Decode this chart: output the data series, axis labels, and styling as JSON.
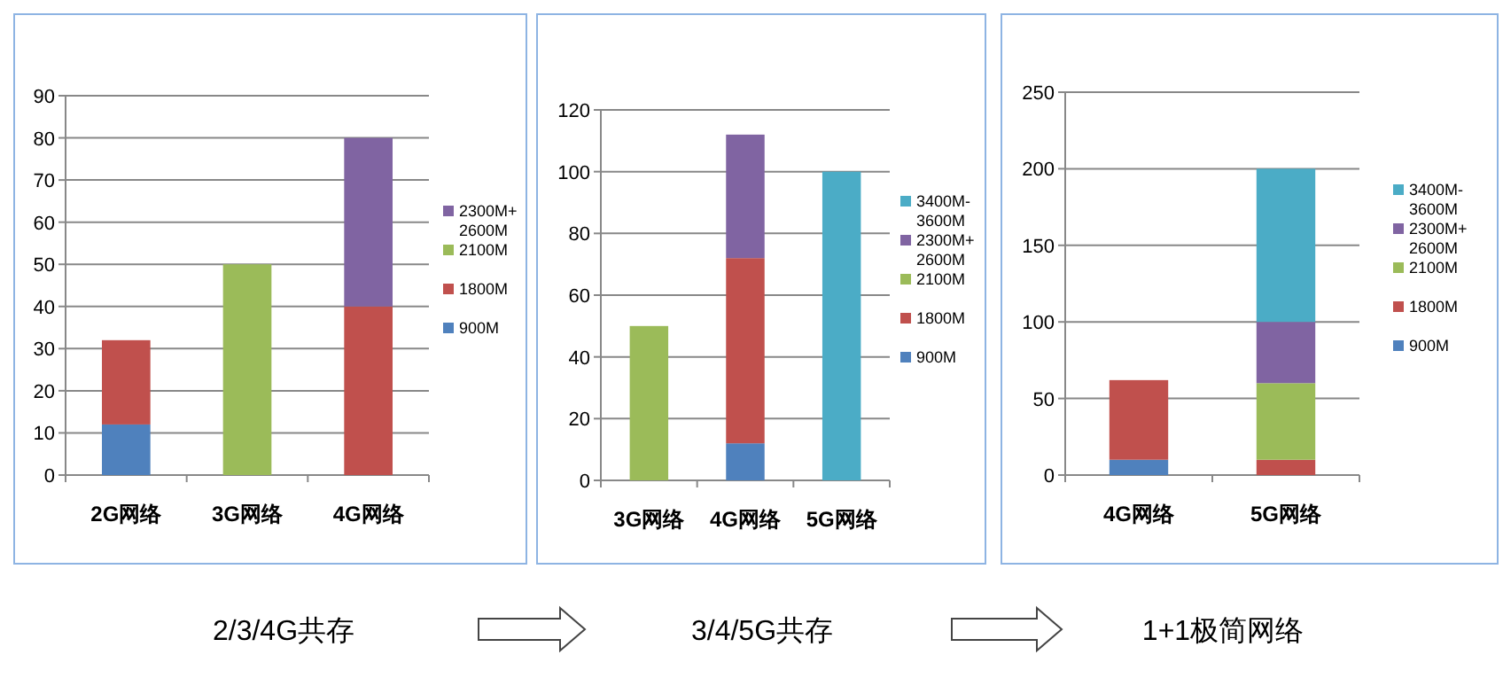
{
  "chart_data": [
    {
      "type": "bar",
      "stacked": true,
      "categories": [
        "2G网络",
        "3G网络",
        "4G网络"
      ],
      "ylim": [
        0,
        90
      ],
      "yticks": [
        0,
        10,
        20,
        30,
        40,
        50,
        60,
        70,
        80,
        90
      ],
      "grid": "y",
      "legend": "right",
      "annotations": [
        "2/3/4G共存"
      ],
      "series": [
        {
          "name": "900M",
          "color": "#4f81bd",
          "values": [
            12,
            null,
            null
          ]
        },
        {
          "name": "1800M",
          "color": "#c0504d",
          "values": [
            20,
            null,
            40
          ]
        },
        {
          "name": "2100M",
          "color": "#9bbb59",
          "values": [
            null,
            50,
            null
          ]
        },
        {
          "name": "2300M+2600M",
          "color": "#8064a2",
          "values": [
            null,
            null,
            40
          ]
        }
      ]
    },
    {
      "type": "bar",
      "stacked": true,
      "categories": [
        "3G网络",
        "4G网络",
        "5G网络"
      ],
      "ylim": [
        0,
        120
      ],
      "yticks": [
        0,
        20,
        40,
        60,
        80,
        100,
        120
      ],
      "grid": "y",
      "legend": "right",
      "annotations": [
        "3/4/5G共存"
      ],
      "series": [
        {
          "name": "900M",
          "color": "#4f81bd",
          "values": [
            null,
            12,
            null
          ]
        },
        {
          "name": "1800M",
          "color": "#c0504d",
          "values": [
            null,
            60,
            null
          ]
        },
        {
          "name": "2100M",
          "color": "#9bbb59",
          "values": [
            50,
            null,
            null
          ]
        },
        {
          "name": "2300M+2600M",
          "color": "#8064a2",
          "values": [
            null,
            40,
            null
          ]
        },
        {
          "name": "3400M-3600M",
          "color": "#4bacc6",
          "values": [
            null,
            null,
            100
          ]
        }
      ]
    },
    {
      "type": "bar",
      "stacked": true,
      "categories": [
        "4G网络",
        "5G网络"
      ],
      "ylim": [
        0,
        250
      ],
      "yticks": [
        0,
        50,
        100,
        150,
        200,
        250
      ],
      "grid": "y",
      "legend": "right",
      "annotations": [
        "1+1极简网络"
      ],
      "series": [
        {
          "name": "900M",
          "color": "#4f81bd",
          "values": [
            10,
            null
          ]
        },
        {
          "name": "1800M",
          "color": "#c0504d",
          "values": [
            52,
            10
          ]
        },
        {
          "name": "2100M",
          "color": "#9bbb59",
          "values": [
            null,
            50
          ]
        },
        {
          "name": "2300M+2600M",
          "color": "#8064a2",
          "values": [
            null,
            40
          ]
        },
        {
          "name": "3400M-3600M",
          "color": "#4bacc6",
          "values": [
            null,
            100
          ]
        }
      ]
    }
  ]
}
